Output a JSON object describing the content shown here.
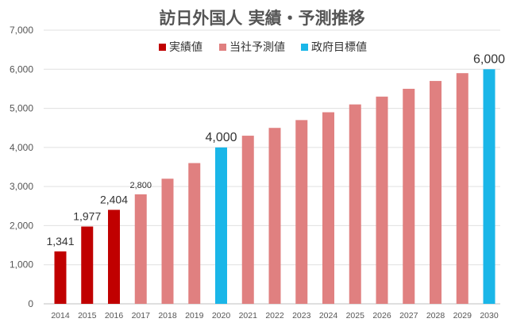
{
  "chart_data": {
    "type": "bar",
    "title": "訪日外国人 実績・予測推移",
    "xlabel": "",
    "ylabel": "",
    "ylim": [
      0,
      7000
    ],
    "yticks": [
      0,
      1000,
      2000,
      3000,
      4000,
      5000,
      6000,
      7000
    ],
    "ytick_labels": [
      "0",
      "1,000",
      "2,000",
      "3,000",
      "4,000",
      "5,000",
      "6,000",
      "7,000"
    ],
    "grid": true,
    "legend_position": "top",
    "categories": [
      "2014",
      "2015",
      "2016",
      "2017",
      "2018",
      "2019",
      "2020",
      "2021",
      "2022",
      "2023",
      "2024",
      "2025",
      "2026",
      "2027",
      "2028",
      "2029",
      "2030"
    ],
    "series": [
      {
        "name": "実績値",
        "color": "#c00000",
        "values": [
          1341,
          1977,
          2404,
          null,
          null,
          null,
          null,
          null,
          null,
          null,
          null,
          null,
          null,
          null,
          null,
          null,
          null
        ]
      },
      {
        "name": "当社予測値",
        "color": "#e08080",
        "values": [
          null,
          null,
          null,
          2800,
          3200,
          3600,
          null,
          4300,
          4500,
          4700,
          4900,
          5100,
          5300,
          5500,
          5700,
          5900,
          null
        ]
      },
      {
        "name": "政府目標値",
        "color": "#1ab6e8",
        "values": [
          null,
          null,
          null,
          null,
          null,
          null,
          4000,
          null,
          null,
          null,
          null,
          null,
          null,
          null,
          null,
          null,
          6000
        ]
      }
    ],
    "data_labels": [
      {
        "category": "2014",
        "text": "1,341"
      },
      {
        "category": "2015",
        "text": "1,977"
      },
      {
        "category": "2016",
        "text": "2,404"
      },
      {
        "category": "2017",
        "text": "2,800"
      },
      {
        "category": "2020",
        "text": "4,000"
      },
      {
        "category": "2030",
        "text": "6,000"
      }
    ]
  }
}
